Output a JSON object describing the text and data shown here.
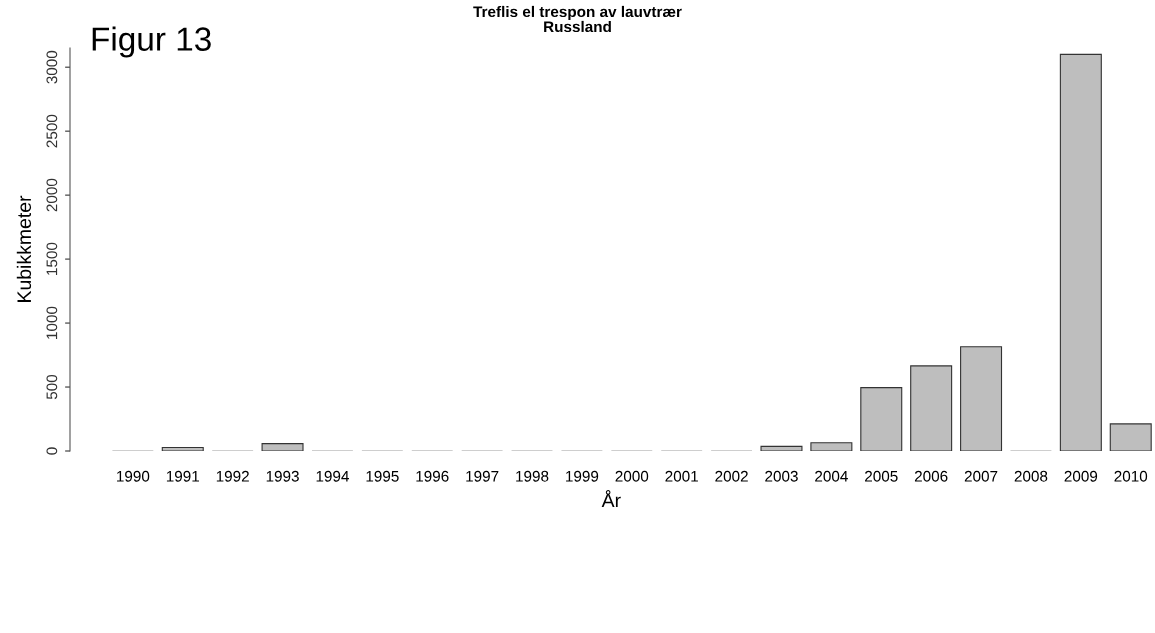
{
  "chart_data": {
    "type": "bar",
    "title": "Treflis el trespon av lauvtrær",
    "subtitle": "Russland",
    "xlabel": "År",
    "ylabel": "Kubikkmeter",
    "annotations": [
      "Figur 13"
    ],
    "categories": [
      "1990",
      "1991",
      "1992",
      "1993",
      "1994",
      "1995",
      "1996",
      "1997",
      "1998",
      "1999",
      "2000",
      "2001",
      "2002",
      "2003",
      "2004",
      "2005",
      "2006",
      "2007",
      "2008",
      "2009",
      "2010"
    ],
    "values": [
      0,
      27,
      0,
      58,
      0,
      0,
      0,
      0,
      0,
      0,
      0,
      0,
      0,
      36,
      65,
      495,
      665,
      815,
      0,
      3100,
      212
    ],
    "color": "#bebebe",
    "ylim": [
      0,
      3150
    ],
    "yticks": [
      0,
      500,
      1000,
      1500,
      2000,
      2500,
      3000
    ],
    "grid": false
  }
}
